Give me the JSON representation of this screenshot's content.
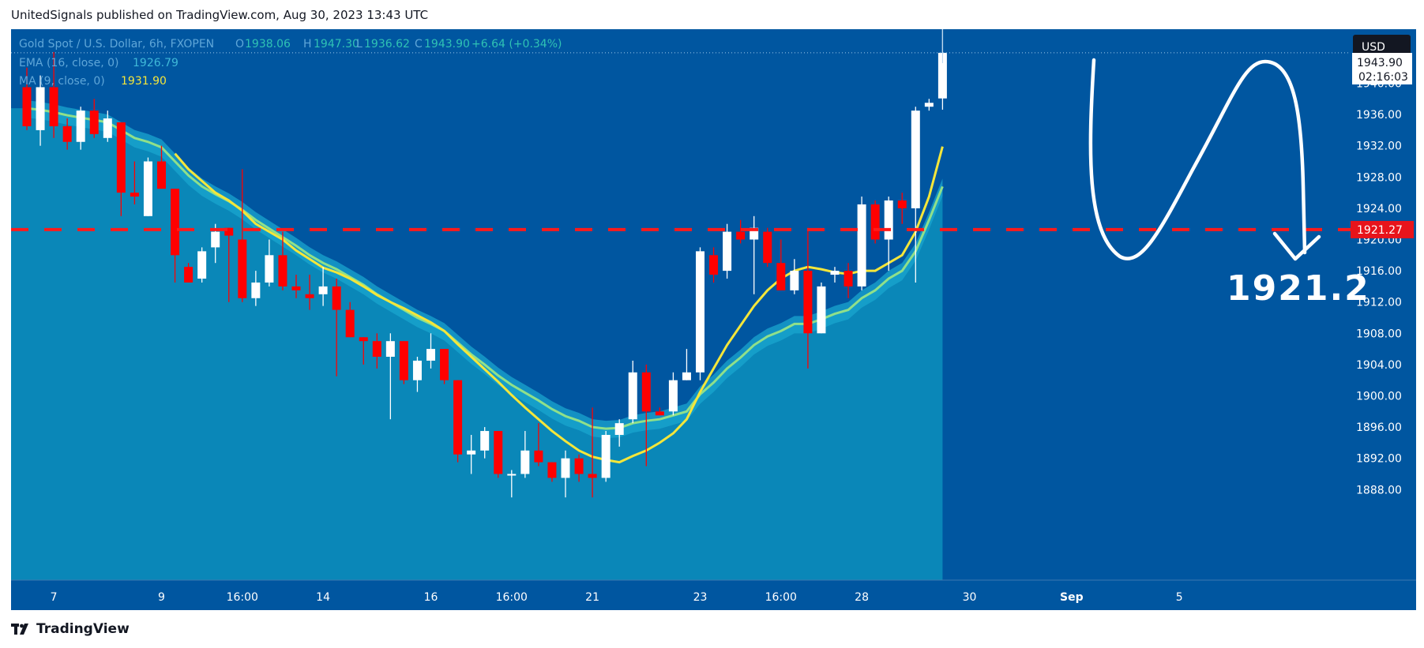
{
  "header": {
    "published_text": "UnitedSignals published on TradingView.com, Aug 30, 2023 13:43 UTC"
  },
  "legend": {
    "symbol": "Gold Spot / U.S. Dollar, 6h, FXOPEN",
    "open_label": "O",
    "open": "1938.06",
    "high_label": "H",
    "high": "1947.30",
    "low_label": "L",
    "low": "1936.62",
    "close_label": "C",
    "close": "1943.90",
    "change": "+6.64 (+0.34%)",
    "ema_label": "EMA (16, close, 0)",
    "ema_value": "1926.79",
    "ma_label": "MA (9, close, 0)",
    "ma_value": "1931.90"
  },
  "price_axis": {
    "currency": "USD",
    "ticks": [
      "1940.00",
      "1936.00",
      "1932.00",
      "1928.00",
      "1924.00",
      "1920.00",
      "1916.00",
      "1912.00",
      "1908.00",
      "1904.00",
      "1900.00",
      "1896.00",
      "1892.00",
      "1888.00"
    ],
    "tick_values": [
      1940,
      1936,
      1932,
      1928,
      1924,
      1920,
      1916,
      1912,
      1908,
      1904,
      1900,
      1896,
      1892,
      1888
    ],
    "current_price": "1943.90",
    "countdown": "02:16:03",
    "level_label": "1921.27"
  },
  "time_axis": {
    "labels": [
      {
        "text": "7",
        "index": 2
      },
      {
        "text": "9",
        "index": 10
      },
      {
        "text": "16:00",
        "index": 16
      },
      {
        "text": "14",
        "index": 22
      },
      {
        "text": "16",
        "index": 30
      },
      {
        "text": "16:00",
        "index": 36
      },
      {
        "text": "21",
        "index": 42
      },
      {
        "text": "23",
        "index": 50
      },
      {
        "text": "16:00",
        "index": 56
      },
      {
        "text": "28",
        "index": 62
      },
      {
        "text": "30",
        "index": 70
      },
      {
        "text": "Sep",
        "index": 77
      },
      {
        "text": "5",
        "index": 85
      }
    ]
  },
  "annotation": {
    "target_label": "1921.2",
    "level_value": 1921.27
  },
  "footer": {
    "brand": "TradingView"
  },
  "colors": {
    "background": "#0056a0",
    "area": "#0a87b8",
    "band": "#1aa6cf",
    "ema": "#8fe08a",
    "ma": "#f4e63a",
    "up": "#ffffff",
    "down": "#ff0000",
    "level": "#ff1a1a",
    "axis_bg": "#0056a0"
  },
  "chart_data": {
    "type": "candlestick",
    "title": "Gold Spot / U.S. Dollar, 6h, FXOPEN",
    "ylim": [
      1885.5,
      1947.8
    ],
    "candles": [
      {
        "o": 1939.5,
        "h": 1942,
        "l": 1934,
        "c": 1934.5
      },
      {
        "o": 1934,
        "h": 1941,
        "l": 1932,
        "c": 1939.5
      },
      {
        "o": 1939.5,
        "h": 1944,
        "l": 1933,
        "c": 1934.5
      },
      {
        "o": 1934.5,
        "h": 1935.5,
        "l": 1931.5,
        "c": 1932.5
      },
      {
        "o": 1932.5,
        "h": 1937,
        "l": 1931.5,
        "c": 1936.5
      },
      {
        "o": 1936.5,
        "h": 1938,
        "l": 1933,
        "c": 1933.5
      },
      {
        "o": 1933,
        "h": 1936.5,
        "l": 1932.5,
        "c": 1935.5
      },
      {
        "o": 1935,
        "h": 1935,
        "l": 1923,
        "c": 1926
      },
      {
        "o": 1926,
        "h": 1930,
        "l": 1924.5,
        "c": 1925.5
      },
      {
        "o": 1923,
        "h": 1930.5,
        "l": 1923,
        "c": 1930
      },
      {
        "o": 1930,
        "h": 1932,
        "l": 1927,
        "c": 1926.5
      },
      {
        "o": 1926.5,
        "h": 1926.5,
        "l": 1914.5,
        "c": 1918
      },
      {
        "o": 1916.5,
        "h": 1917,
        "l": 1914.5,
        "c": 1914.5
      },
      {
        "o": 1915,
        "h": 1919,
        "l": 1914.5,
        "c": 1918.5
      },
      {
        "o": 1919,
        "h": 1922,
        "l": 1917,
        "c": 1921
      },
      {
        "o": 1921.5,
        "h": 1921.5,
        "l": 1912,
        "c": 1920.5
      },
      {
        "o": 1920,
        "h": 1929,
        "l": 1912,
        "c": 1912.5
      },
      {
        "o": 1912.5,
        "h": 1916,
        "l": 1911.5,
        "c": 1914.5
      },
      {
        "o": 1914.5,
        "h": 1920,
        "l": 1914,
        "c": 1918
      },
      {
        "o": 1918,
        "h": 1921,
        "l": 1913.5,
        "c": 1914
      },
      {
        "o": 1914,
        "h": 1915.5,
        "l": 1912.5,
        "c": 1913.5
      },
      {
        "o": 1913,
        "h": 1915.5,
        "l": 1911,
        "c": 1912.5
      },
      {
        "o": 1913,
        "h": 1916.5,
        "l": 1911.5,
        "c": 1914
      },
      {
        "o": 1914,
        "h": 1915,
        "l": 1902.5,
        "c": 1911
      },
      {
        "o": 1911,
        "h": 1912,
        "l": 1907.5,
        "c": 1907.5
      },
      {
        "o": 1907.5,
        "h": 1907.5,
        "l": 1904,
        "c": 1907
      },
      {
        "o": 1907,
        "h": 1908,
        "l": 1903.5,
        "c": 1905
      },
      {
        "o": 1905,
        "h": 1908,
        "l": 1897,
        "c": 1907
      },
      {
        "o": 1907,
        "h": 1907,
        "l": 1901.5,
        "c": 1902
      },
      {
        "o": 1902,
        "h": 1905,
        "l": 1900.5,
        "c": 1904.5
      },
      {
        "o": 1904.5,
        "h": 1908,
        "l": 1903.5,
        "c": 1906
      },
      {
        "o": 1906,
        "h": 1906,
        "l": 1901.5,
        "c": 1902
      },
      {
        "o": 1902,
        "h": 1902,
        "l": 1891.5,
        "c": 1892.5
      },
      {
        "o": 1892.5,
        "h": 1895,
        "l": 1890,
        "c": 1893
      },
      {
        "o": 1893,
        "h": 1896,
        "l": 1892,
        "c": 1895.5
      },
      {
        "o": 1895.5,
        "h": 1895.5,
        "l": 1889.5,
        "c": 1890
      },
      {
        "o": 1890,
        "h": 1890.5,
        "l": 1887,
        "c": 1890
      },
      {
        "o": 1890,
        "h": 1895.5,
        "l": 1889.5,
        "c": 1893
      },
      {
        "o": 1893,
        "h": 1896.5,
        "l": 1891,
        "c": 1891.5
      },
      {
        "o": 1891.5,
        "h": 1891.5,
        "l": 1889,
        "c": 1889.5
      },
      {
        "o": 1889.5,
        "h": 1893,
        "l": 1887,
        "c": 1892
      },
      {
        "o": 1892,
        "h": 1892.5,
        "l": 1889,
        "c": 1890
      },
      {
        "o": 1890,
        "h": 1898.5,
        "l": 1887,
        "c": 1889.5
      },
      {
        "o": 1889.5,
        "h": 1895.5,
        "l": 1889,
        "c": 1895
      },
      {
        "o": 1895,
        "h": 1897,
        "l": 1893.5,
        "c": 1896.5
      },
      {
        "o": 1897,
        "h": 1904.5,
        "l": 1896.5,
        "c": 1903
      },
      {
        "o": 1903,
        "h": 1904,
        "l": 1891,
        "c": 1898
      },
      {
        "o": 1898,
        "h": 1898.5,
        "l": 1897.5,
        "c": 1897.5
      },
      {
        "o": 1898,
        "h": 1903,
        "l": 1897.5,
        "c": 1902
      },
      {
        "o": 1902,
        "h": 1906,
        "l": 1902,
        "c": 1903
      },
      {
        "o": 1903,
        "h": 1919,
        "l": 1902,
        "c": 1918.5
      },
      {
        "o": 1918,
        "h": 1919,
        "l": 1914.5,
        "c": 1915.5
      },
      {
        "o": 1916,
        "h": 1922,
        "l": 1915,
        "c": 1921
      },
      {
        "o": 1921,
        "h": 1922.5,
        "l": 1919.5,
        "c": 1920
      },
      {
        "o": 1920,
        "h": 1923,
        "l": 1913,
        "c": 1921.5
      },
      {
        "o": 1921,
        "h": 1921.5,
        "l": 1916.5,
        "c": 1917
      },
      {
        "o": 1917,
        "h": 1920,
        "l": 1913.5,
        "c": 1913.5
      },
      {
        "o": 1913.5,
        "h": 1917.5,
        "l": 1913,
        "c": 1916
      },
      {
        "o": 1916,
        "h": 1921.5,
        "l": 1903.5,
        "c": 1908
      },
      {
        "o": 1908,
        "h": 1914.5,
        "l": 1908,
        "c": 1914
      },
      {
        "o": 1915.5,
        "h": 1916.5,
        "l": 1914.5,
        "c": 1916
      },
      {
        "o": 1916,
        "h": 1917,
        "l": 1912.5,
        "c": 1914
      },
      {
        "o": 1914,
        "h": 1925.5,
        "l": 1913.5,
        "c": 1924.5
      },
      {
        "o": 1924.5,
        "h": 1925,
        "l": 1919.5,
        "c": 1920
      },
      {
        "o": 1920,
        "h": 1925.5,
        "l": 1916,
        "c": 1925
      },
      {
        "o": 1925,
        "h": 1926,
        "l": 1922,
        "c": 1924
      },
      {
        "o": 1924,
        "h": 1937,
        "l": 1914.5,
        "c": 1936.5
      },
      {
        "o": 1937,
        "h": 1938,
        "l": 1936.5,
        "c": 1937.5
      },
      {
        "o": 1938.06,
        "h": 1947.3,
        "l": 1936.62,
        "c": 1943.9
      }
    ],
    "ema16": [
      1936.8,
      1936.6,
      1936.3,
      1935.9,
      1935.6,
      1935.3,
      1935.0,
      1934.0,
      1933.0,
      1932.5,
      1931.8,
      1930.0,
      1928.2,
      1926.8,
      1925.8,
      1924.9,
      1923.8,
      1922.5,
      1921.4,
      1920.3,
      1919.2,
      1918.0,
      1917.0,
      1916.2,
      1915.2,
      1914.2,
      1913.0,
      1912.0,
      1911.0,
      1910.0,
      1909.2,
      1908.3,
      1906.8,
      1905.3,
      1904.0,
      1902.6,
      1901.4,
      1900.4,
      1899.4,
      1898.3,
      1897.4,
      1896.8,
      1896.0,
      1895.8,
      1895.9,
      1896.5,
      1896.8,
      1897.0,
      1897.5,
      1898.0,
      1900.2,
      1901.7,
      1903.5,
      1904.9,
      1906.5,
      1907.6,
      1908.3,
      1909.2,
      1909.2,
      1909.8,
      1910.5,
      1911.0,
      1912.5,
      1913.5,
      1915.0,
      1916.0,
      1918.5,
      1922.5,
      1926.79
    ],
    "ma9": [
      null,
      null,
      null,
      null,
      null,
      null,
      null,
      null,
      null,
      null,
      null,
      1931.0,
      1929.0,
      1927.5,
      1926.0,
      1925.0,
      1923.7,
      1922.0,
      1921.0,
      1920.0,
      1918.6,
      1917.5,
      1916.4,
      1915.8,
      1915.0,
      1914.0,
      1912.9,
      1912.0,
      1911.2,
      1910.3,
      1909.4,
      1908.3,
      1906.6,
      1905.0,
      1903.4,
      1901.8,
      1900.1,
      1898.5,
      1897.0,
      1895.5,
      1894.2,
      1893.0,
      1892.2,
      1891.8,
      1891.5,
      1892.3,
      1893.0,
      1894.0,
      1895.2,
      1897.0,
      1900.5,
      1903.5,
      1906.5,
      1909.0,
      1911.5,
      1913.5,
      1915.0,
      1916.0,
      1916.5,
      1916.2,
      1915.8,
      1915.6,
      1916.0,
      1916.0,
      1917.0,
      1918.0,
      1921.0,
      1925.5,
      1931.9
    ],
    "horizontal_level": 1921.27
  }
}
